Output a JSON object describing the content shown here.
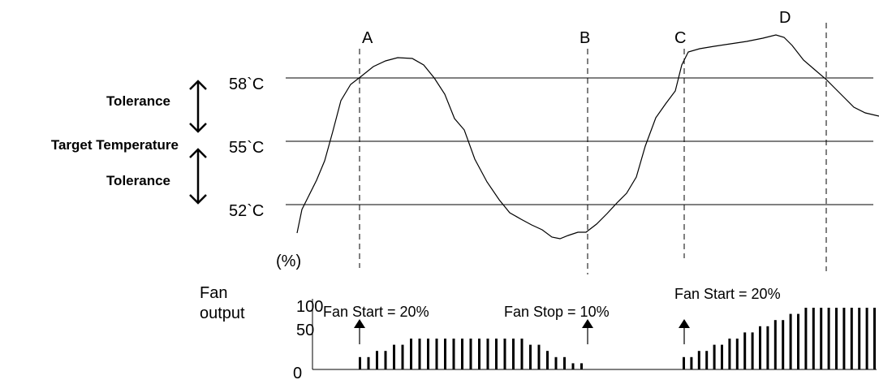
{
  "levels": {
    "high": "58`C",
    "target": "55`C",
    "low": "52`C"
  },
  "side_labels": {
    "tolerance_upper": "Tolerance",
    "target": "Target Temperature",
    "tolerance_lower": "Tolerance"
  },
  "markers": [
    "A",
    "B",
    "C",
    "D"
  ],
  "fan": {
    "unit": "(%)",
    "title_line1": "Fan",
    "title_line2": "output",
    "ticks": [
      "100",
      "50",
      "0"
    ]
  },
  "annotations": {
    "start_a": "Fan Start = 20%",
    "stop_b": "Fan Stop = 10%",
    "start_c": "Fan Start = 20%"
  },
  "temperature_curve": [
    [
      366,
      287
    ],
    [
      372,
      258
    ],
    [
      380,
      242
    ],
    [
      390,
      222
    ],
    [
      400,
      198
    ],
    [
      410,
      162
    ],
    [
      420,
      124
    ],
    [
      432,
      104
    ],
    [
      445,
      94
    ],
    [
      460,
      82
    ],
    [
      475,
      75
    ],
    [
      490,
      71
    ],
    [
      508,
      72
    ],
    [
      522,
      80
    ],
    [
      535,
      96
    ],
    [
      548,
      116
    ],
    [
      560,
      146
    ],
    [
      572,
      160
    ],
    [
      585,
      196
    ],
    [
      600,
      224
    ],
    [
      615,
      246
    ],
    [
      628,
      262
    ],
    [
      642,
      270
    ],
    [
      655,
      277
    ],
    [
      668,
      283
    ],
    [
      680,
      292
    ],
    [
      690,
      294
    ],
    [
      700,
      290
    ],
    [
      712,
      286
    ],
    [
      722,
      286
    ],
    [
      735,
      276
    ],
    [
      748,
      263
    ],
    [
      760,
      250
    ],
    [
      772,
      238
    ],
    [
      784,
      218
    ],
    [
      795,
      180
    ],
    [
      808,
      145
    ],
    [
      820,
      128
    ],
    [
      832,
      112
    ],
    [
      840,
      80
    ],
    [
      848,
      64
    ],
    [
      862,
      60
    ],
    [
      880,
      57
    ],
    [
      900,
      54
    ],
    [
      920,
      51
    ],
    [
      940,
      47
    ],
    [
      956,
      43
    ],
    [
      966,
      46
    ],
    [
      976,
      56
    ],
    [
      990,
      74
    ],
    [
      1004,
      86
    ],
    [
      1018,
      98
    ],
    [
      1030,
      110
    ],
    [
      1040,
      120
    ],
    [
      1052,
      132
    ],
    [
      1066,
      139
    ],
    [
      1083,
      143
    ]
  ],
  "fan_bars": {
    "segment1": [
      20,
      20,
      30,
      30,
      40,
      40,
      50,
      50,
      50,
      50,
      50,
      50,
      50,
      50,
      50,
      50,
      50,
      50,
      50,
      50,
      40,
      40,
      30,
      20,
      20,
      10,
      10
    ],
    "segment2": [
      20,
      20,
      30,
      30,
      40,
      40,
      50,
      50,
      60,
      60,
      70,
      70,
      80,
      80,
      90,
      90,
      100,
      100,
      100,
      100,
      100,
      100,
      100,
      100,
      100,
      100
    ]
  }
}
